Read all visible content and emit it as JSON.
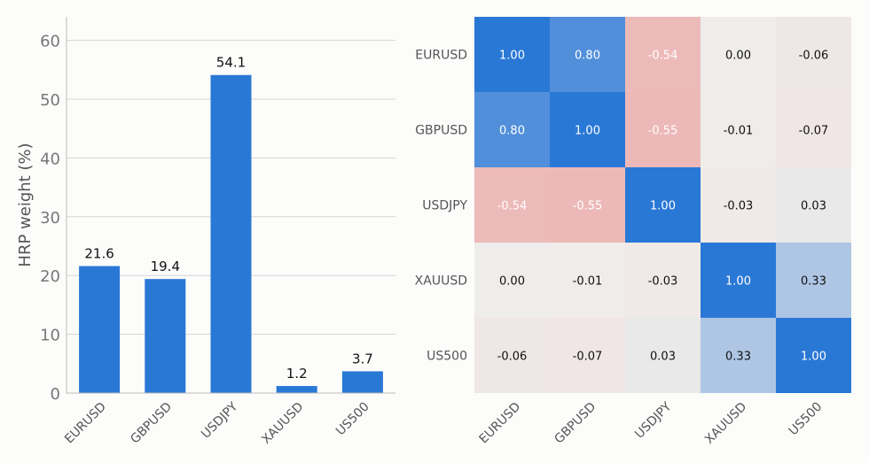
{
  "colors": {
    "bar": "#2a78d6",
    "grid": "#d6d6d6",
    "axis": "#bbbbbb",
    "tick_text": "#777777",
    "label_text": "#555555",
    "value_text": "#111111",
    "heat_positive": "#2a78d6",
    "heat_neutral": "#efedeb",
    "heat_negative": "#e98f8f"
  },
  "chart_data": [
    {
      "type": "bar",
      "title": "",
      "xlabel": "",
      "ylabel": "HRP weight  (%)",
      "categories": [
        "EURUSD",
        "GBPUSD",
        "USDJPY",
        "XAUUSD",
        "US500"
      ],
      "values": [
        21.6,
        19.4,
        54.1,
        1.2,
        3.7
      ],
      "data_labels": [
        "21.6",
        "19.4",
        "54.1",
        "1.2",
        "3.7"
      ],
      "ylim": [
        0,
        64
      ],
      "yticks": [
        0,
        10,
        20,
        30,
        40,
        50,
        60
      ],
      "grid": true,
      "legend": "none"
    },
    {
      "type": "heatmap",
      "title": "",
      "rows": [
        "EURUSD",
        "GBPUSD",
        "USDJPY",
        "XAUUSD",
        "US500"
      ],
      "columns": [
        "EURUSD",
        "GBPUSD",
        "USDJPY",
        "XAUUSD",
        "US500"
      ],
      "values": [
        [
          1.0,
          0.8,
          -0.54,
          0.0,
          -0.06
        ],
        [
          0.8,
          1.0,
          -0.55,
          -0.01,
          -0.07
        ],
        [
          -0.54,
          -0.55,
          1.0,
          -0.03,
          0.03
        ],
        [
          0.0,
          -0.01,
          -0.03,
          1.0,
          0.33
        ],
        [
          -0.06,
          -0.07,
          0.03,
          0.33,
          1.0
        ]
      ],
      "labels": [
        [
          "1.00",
          "0.80",
          "-0.54",
          "0.00",
          "-0.06"
        ],
        [
          "0.80",
          "1.00",
          "-0.55",
          "-0.01",
          "-0.07"
        ],
        [
          "-0.54",
          "-0.55",
          "1.00",
          "-0.03",
          "0.03"
        ],
        [
          "0.00",
          "-0.01",
          "-0.03",
          "1.00",
          "0.33"
        ],
        [
          "-0.06",
          "-0.07",
          "0.03",
          "0.33",
          "1.00"
        ]
      ],
      "color_range": [
        -1,
        1
      ],
      "colorbar": false
    }
  ]
}
